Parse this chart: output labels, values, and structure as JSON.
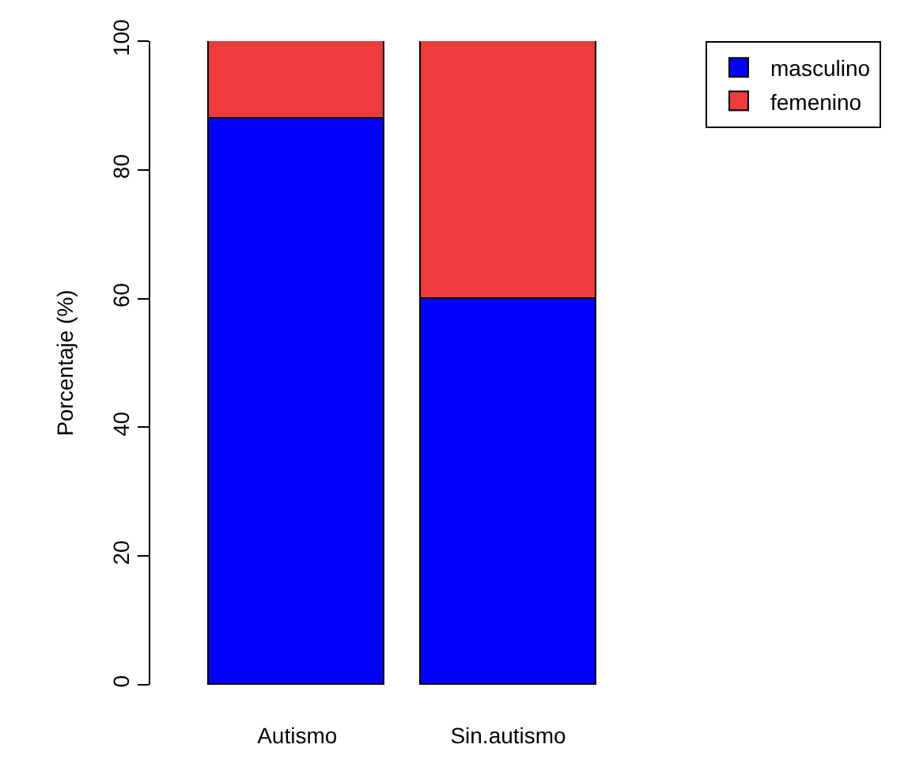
{
  "chart_data": {
    "type": "bar",
    "stacked": true,
    "categories": [
      "Autismo",
      "Sin.autismo"
    ],
    "ylabel": "Porcentaje (%)",
    "ylim": [
      0,
      100
    ],
    "yticks": [
      0,
      20,
      40,
      60,
      80,
      100
    ],
    "legend": "top right",
    "series": [
      {
        "name": "masculino",
        "color": "#0000ff",
        "values": [
          88,
          60
        ]
      },
      {
        "name": "femenino",
        "color": "#ee3b3b",
        "values": [
          12,
          40
        ]
      }
    ]
  }
}
